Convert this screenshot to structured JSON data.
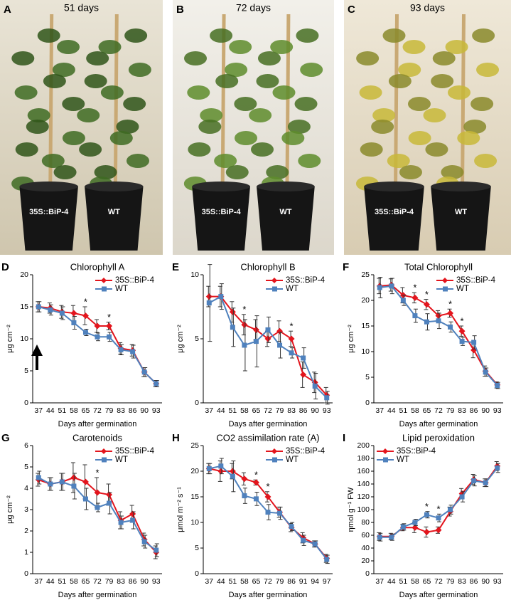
{
  "photos": [
    {
      "letter": "A",
      "caption": "51 days",
      "left_label": "35S::BiP-4",
      "right_label": "WT"
    },
    {
      "letter": "B",
      "caption": "72 days",
      "left_label": "35S::BiP-4",
      "right_label": "WT"
    },
    {
      "letter": "C",
      "caption": "93 days",
      "left_label": "35S::BiP-4",
      "right_label": "WT"
    }
  ],
  "chart_data": [
    {
      "type": "line",
      "panel": "D",
      "title": "Chlorophyll A",
      "xlabel": "Days after germination",
      "ylabel": "μg cm⁻²",
      "categories": [
        "37",
        "44",
        "51",
        "58",
        "65",
        "72",
        "79",
        "83",
        "86",
        "90",
        "93"
      ],
      "series": [
        {
          "name": "35S::BiP-4",
          "color": "#e3151d",
          "marker": "diamond",
          "values": [
            15,
            14.8,
            14.2,
            14,
            13.6,
            12,
            12,
            8.5,
            8.2,
            4.8,
            3
          ],
          "errors": [
            0.8,
            0.8,
            1,
            1.2,
            1.4,
            1,
            0.6,
            0.9,
            0.9,
            0.7,
            0.5
          ]
        },
        {
          "name": "WT",
          "color": "#4f81bd",
          "marker": "square",
          "values": [
            15,
            14.5,
            14,
            12.5,
            11,
            10.3,
            10.3,
            8.3,
            8,
            4.8,
            3
          ],
          "errors": [
            0.8,
            0.8,
            1,
            1,
            0.5,
            0.6,
            0.7,
            0.8,
            1,
            0.7,
            0.5
          ]
        }
      ],
      "ylim": [
        0,
        20
      ],
      "yticks": [
        0,
        5,
        10,
        15,
        20
      ],
      "legend": "upper right",
      "annotations": [
        {
          "text": "*",
          "category": "65"
        },
        {
          "text": "*",
          "category": "79"
        }
      ]
    },
    {
      "type": "line",
      "panel": "E",
      "title": "Chlorophyll B",
      "xlabel": "Days after germination",
      "ylabel": "μg cm⁻²",
      "categories": [
        "37",
        "44",
        "51",
        "58",
        "65",
        "72",
        "79",
        "83",
        "86",
        "90",
        "93"
      ],
      "series": [
        {
          "name": "35S::BiP-4",
          "color": "#e3151d",
          "marker": "diamond",
          "values": [
            8.3,
            8.3,
            7.1,
            6.1,
            5.7,
            5,
            5.6,
            5,
            2.2,
            1.6,
            0.6
          ],
          "errors": [
            0.8,
            0.8,
            0.8,
            0.8,
            0.8,
            0.6,
            0.8,
            0.6,
            1,
            0.8,
            0.6
          ]
        },
        {
          "name": "WT",
          "color": "#4f81bd",
          "marker": "square",
          "values": [
            7.8,
            8.3,
            5.9,
            4.5,
            4.8,
            5.7,
            4.5,
            3.9,
            3.5,
            1.3,
            0.4
          ],
          "errors": [
            3,
            1,
            1.5,
            2,
            2,
            1,
            1,
            0.4,
            0.8,
            1,
            0.5
          ]
        }
      ],
      "ylim": [
        0,
        10
      ],
      "yticks": [
        0,
        5,
        10
      ],
      "legend": "upper right",
      "annotations": [
        {
          "text": "*",
          "category": "58"
        },
        {
          "text": "*",
          "category": "83"
        }
      ]
    },
    {
      "type": "line",
      "panel": "F",
      "title": "Total Chlorophyll",
      "xlabel": "Days after germination",
      "ylabel": "μg cm⁻²",
      "categories": [
        "37",
        "44",
        "51",
        "58",
        "65",
        "72",
        "79",
        "83",
        "86",
        "90",
        "93"
      ],
      "series": [
        {
          "name": "35S::BiP-4",
          "color": "#e3151d",
          "marker": "diamond",
          "values": [
            22.8,
            23,
            21,
            20.5,
            19.2,
            17,
            17.5,
            14,
            10.3,
            6.2,
            3.5
          ],
          "errors": [
            1.5,
            1.2,
            1.5,
            1,
            1,
            1,
            0.8,
            1,
            1.5,
            1,
            0.6
          ]
        },
        {
          "name": "WT",
          "color": "#4f81bd",
          "marker": "square",
          "values": [
            22.5,
            22.8,
            20,
            17,
            15.8,
            16,
            14.8,
            12,
            11.8,
            6,
            3.4
          ],
          "errors": [
            2,
            1.5,
            1,
            1.3,
            1.6,
            1.5,
            1,
            0.8,
            1.3,
            0.8,
            0.6
          ]
        }
      ],
      "ylim": [
        0,
        25
      ],
      "yticks": [
        0,
        5,
        10,
        15,
        20,
        25
      ],
      "legend": "upper right",
      "annotations": [
        {
          "text": "*",
          "category": "58"
        },
        {
          "text": "*",
          "category": "65"
        },
        {
          "text": "*",
          "category": "79"
        },
        {
          "text": "*",
          "category": "83"
        }
      ]
    },
    {
      "type": "line",
      "panel": "G",
      "title": "Carotenoids",
      "xlabel": "Days after germination",
      "ylabel": "μg cm⁻²",
      "categories": [
        "37",
        "44",
        "51",
        "58",
        "65",
        "72",
        "79",
        "83",
        "86",
        "90",
        "93"
      ],
      "series": [
        {
          "name": "35S::BiP-4",
          "color": "#e3151d",
          "marker": "diamond",
          "values": [
            4.4,
            4.2,
            4.3,
            4.5,
            4.3,
            3.8,
            3.7,
            2.5,
            2.8,
            1.6,
            1
          ],
          "errors": [
            0.3,
            0.3,
            0.4,
            0.7,
            0.8,
            0.7,
            0.5,
            0.4,
            0.4,
            0.3,
            0.3
          ]
        },
        {
          "name": "WT",
          "color": "#4f81bd",
          "marker": "square",
          "values": [
            4.5,
            4.2,
            4.3,
            4.1,
            3.5,
            3.1,
            3.3,
            2.4,
            2.5,
            1.5,
            1.1
          ],
          "errors": [
            0.3,
            0.3,
            0.4,
            0.6,
            0.5,
            0.2,
            0.5,
            0.3,
            0.4,
            0.3,
            0.3
          ]
        }
      ],
      "ylim": [
        0,
        6
      ],
      "yticks": [
        0,
        1,
        2,
        3,
        4,
        5,
        6
      ],
      "legend": "upper right",
      "annotations": [
        {
          "text": "*",
          "category": "72"
        }
      ]
    },
    {
      "type": "line",
      "panel": "H",
      "title": "CO2 assimilation rate (A)",
      "xlabel": "Days after germination",
      "ylabel": "μmol m⁻² s⁻¹",
      "categories": [
        "37",
        "44",
        "51",
        "58",
        "65",
        "72",
        "79",
        "86",
        "91",
        "94",
        "97"
      ],
      "series": [
        {
          "name": "35S::BiP-4",
          "color": "#e3151d",
          "marker": "diamond",
          "values": [
            20.5,
            20,
            20,
            18.5,
            17.8,
            15,
            12,
            9,
            7,
            5.8,
            3
          ],
          "errors": [
            1,
            2,
            1.5,
            1.2,
            0.5,
            1,
            1,
            0.8,
            1,
            0.6,
            0.8
          ]
        },
        {
          "name": "WT",
          "color": "#4f81bd",
          "marker": "square",
          "values": [
            20.5,
            21,
            19,
            15.2,
            14.6,
            12,
            11.8,
            9.2,
            6.5,
            5.8,
            2.8
          ],
          "errors": [
            1,
            1.5,
            3,
            1.5,
            1.3,
            1.5,
            1.2,
            0.8,
            1,
            0.6,
            0.8
          ]
        }
      ],
      "ylim": [
        0,
        25
      ],
      "yticks": [
        0,
        5,
        10,
        15,
        20,
        25
      ],
      "legend": "upper right",
      "annotations": [
        {
          "text": "*",
          "category": "65"
        },
        {
          "text": "*",
          "category": "72"
        }
      ]
    },
    {
      "type": "line",
      "panel": "I",
      "title": "Lipid peroxidation",
      "xlabel": "Days after germination",
      "ylabel": "ηmol g⁻¹ FW",
      "categories": [
        "37",
        "44",
        "51",
        "58",
        "65",
        "72",
        "79",
        "83",
        "86",
        "90",
        "93"
      ],
      "series": [
        {
          "name": "35S::BiP-4",
          "color": "#e3151d",
          "marker": "diamond",
          "values": [
            58,
            58,
            72,
            72,
            65,
            68,
            97,
            125,
            147,
            142,
            168
          ],
          "errors": [
            6,
            5,
            5,
            8,
            8,
            5,
            7,
            8,
            8,
            6,
            7
          ]
        },
        {
          "name": "WT",
          "color": "#4f81bd",
          "marker": "square",
          "values": [
            57,
            57,
            73,
            80,
            92,
            87,
            100,
            120,
            145,
            142,
            165
          ],
          "errors": [
            6,
            5,
            5,
            5,
            5,
            6,
            7,
            8,
            8,
            6,
            7
          ]
        }
      ],
      "ylim": [
        0,
        200
      ],
      "yticks": [
        0,
        20,
        40,
        60,
        80,
        100,
        120,
        140,
        160,
        180,
        200
      ],
      "legend": "upper left",
      "annotations": [
        {
          "text": "*",
          "category": "65"
        },
        {
          "text": "*",
          "category": "72"
        }
      ]
    }
  ]
}
